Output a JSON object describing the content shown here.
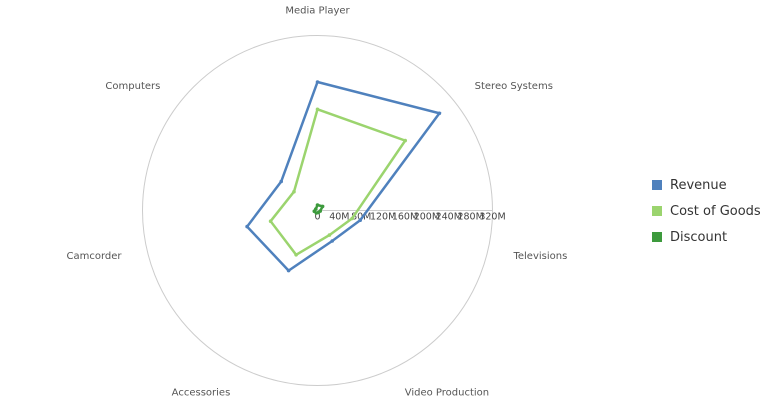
{
  "chart_data": {
    "type": "radar",
    "title": "",
    "categories": [
      "Media Player",
      "Stereo Systems",
      "Televisions",
      "Video Production",
      "Accessories",
      "Camcorder",
      "Computers"
    ],
    "axis": {
      "min": 0,
      "max": 320000000,
      "ticks": [
        {
          "value": 0,
          "label": "0"
        },
        {
          "value": 40000000,
          "label": "40M"
        },
        {
          "value": 80000000,
          "label": "80M"
        },
        {
          "value": 120000000,
          "label": "120M"
        },
        {
          "value": 160000000,
          "label": "160M"
        },
        {
          "value": 200000000,
          "label": "200M"
        },
        {
          "value": 240000000,
          "label": "240M"
        },
        {
          "value": 280000000,
          "label": "280M"
        },
        {
          "value": 320000000,
          "label": "320M"
        }
      ]
    },
    "grid": true,
    "legend_position": "right",
    "series": [
      {
        "name": "Revenue",
        "color": "#4f81bd",
        "values": [
          235000000,
          285000000,
          80000000,
          62000000,
          122000000,
          132000000,
          85000000
        ]
      },
      {
        "name": "Cost of Goods",
        "color": "#9bd46e",
        "values": [
          185000000,
          205000000,
          65000000,
          50000000,
          90000000,
          88000000,
          55000000
        ]
      },
      {
        "name": "Discount",
        "color": "#3d9a3d",
        "values": [
          10000000,
          12000000,
          5000000,
          4000000,
          5000000,
          6000000,
          4000000
        ]
      }
    ]
  }
}
